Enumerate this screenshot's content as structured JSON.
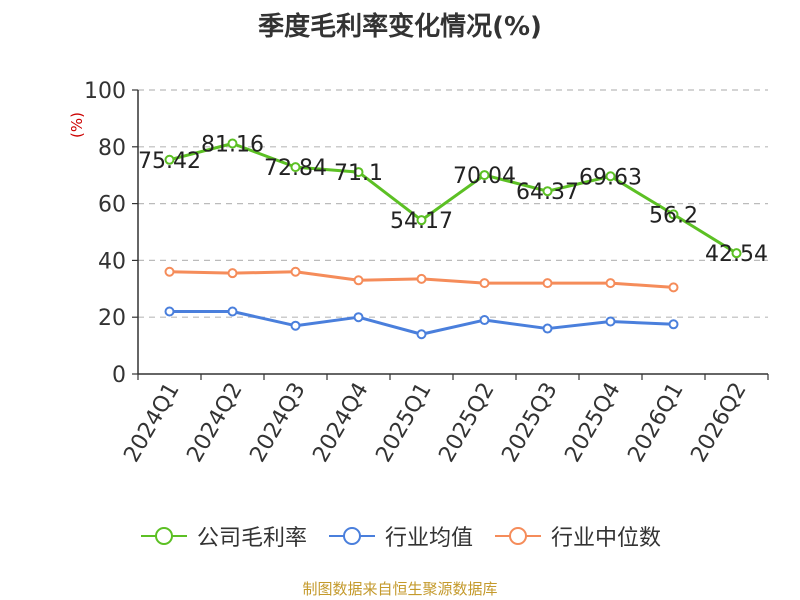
{
  "chart_data": {
    "type": "line",
    "title": "季度毛利率变化情况(%)",
    "ylabel": "(%)",
    "ylim": [
      0,
      100
    ],
    "yticks": [
      0,
      20,
      40,
      60,
      80,
      100
    ],
    "categories": [
      "2024Q1",
      "2024Q2",
      "2024Q3",
      "2024Q4",
      "2025Q1",
      "2025Q2",
      "2025Q3",
      "2025Q4",
      "2026Q1",
      "2026Q2"
    ],
    "series": [
      {
        "name": "公司毛利率",
        "color": "#5cc024",
        "values": [
          75.42,
          81.16,
          72.84,
          71.1,
          54.17,
          70.04,
          64.37,
          69.63,
          56.2,
          42.54
        ],
        "labels": [
          "75.42",
          "81.16",
          "72.84",
          "71.1",
          "54.17",
          "70.04",
          "64.37",
          "69.63",
          "56.2",
          "42.54"
        ]
      },
      {
        "name": "行业均值",
        "color": "#4a7fdc",
        "values": [
          22,
          22,
          17,
          20,
          14,
          19,
          16,
          18.5,
          17.5,
          null
        ]
      },
      {
        "name": "行业中位数",
        "color": "#f58c5a",
        "values": [
          36,
          35.5,
          36,
          33,
          33.5,
          32,
          32,
          32,
          30.5,
          null
        ]
      }
    ],
    "grid": true,
    "legend": "bottom"
  },
  "source": "制图数据来自恒生聚源数据库"
}
